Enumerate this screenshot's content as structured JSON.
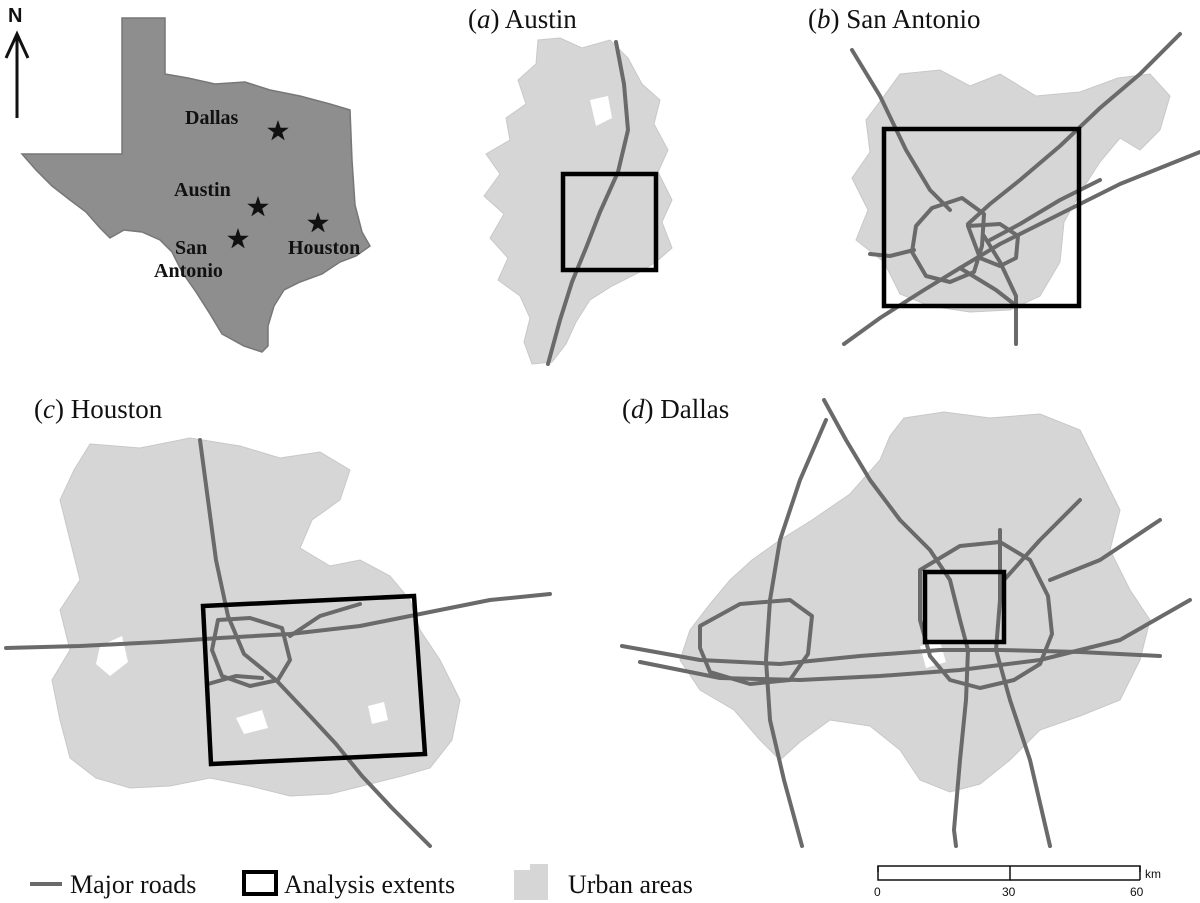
{
  "north_label": "N",
  "texas_cities": [
    "Dallas",
    "Austin",
    "San",
    "Antonio",
    "Houston"
  ],
  "panels": {
    "a": {
      "letter": "a",
      "name": "Austin"
    },
    "b": {
      "letter": "b",
      "name": "San Antonio"
    },
    "c": {
      "letter": "c",
      "name": "Houston"
    },
    "d": {
      "letter": "d",
      "name": "Dallas"
    }
  },
  "legend": {
    "roads": "Major roads",
    "extents": "Analysis extents",
    "urban": "Urban areas"
  },
  "scale_bar": {
    "ticks": [
      "0",
      "30",
      "60"
    ],
    "unit": "km"
  },
  "colors": {
    "texas_fill": "#8e8e8e",
    "urban_fill": "#d6d6d6",
    "road": "#6a6a6a",
    "extent": "#000000"
  }
}
